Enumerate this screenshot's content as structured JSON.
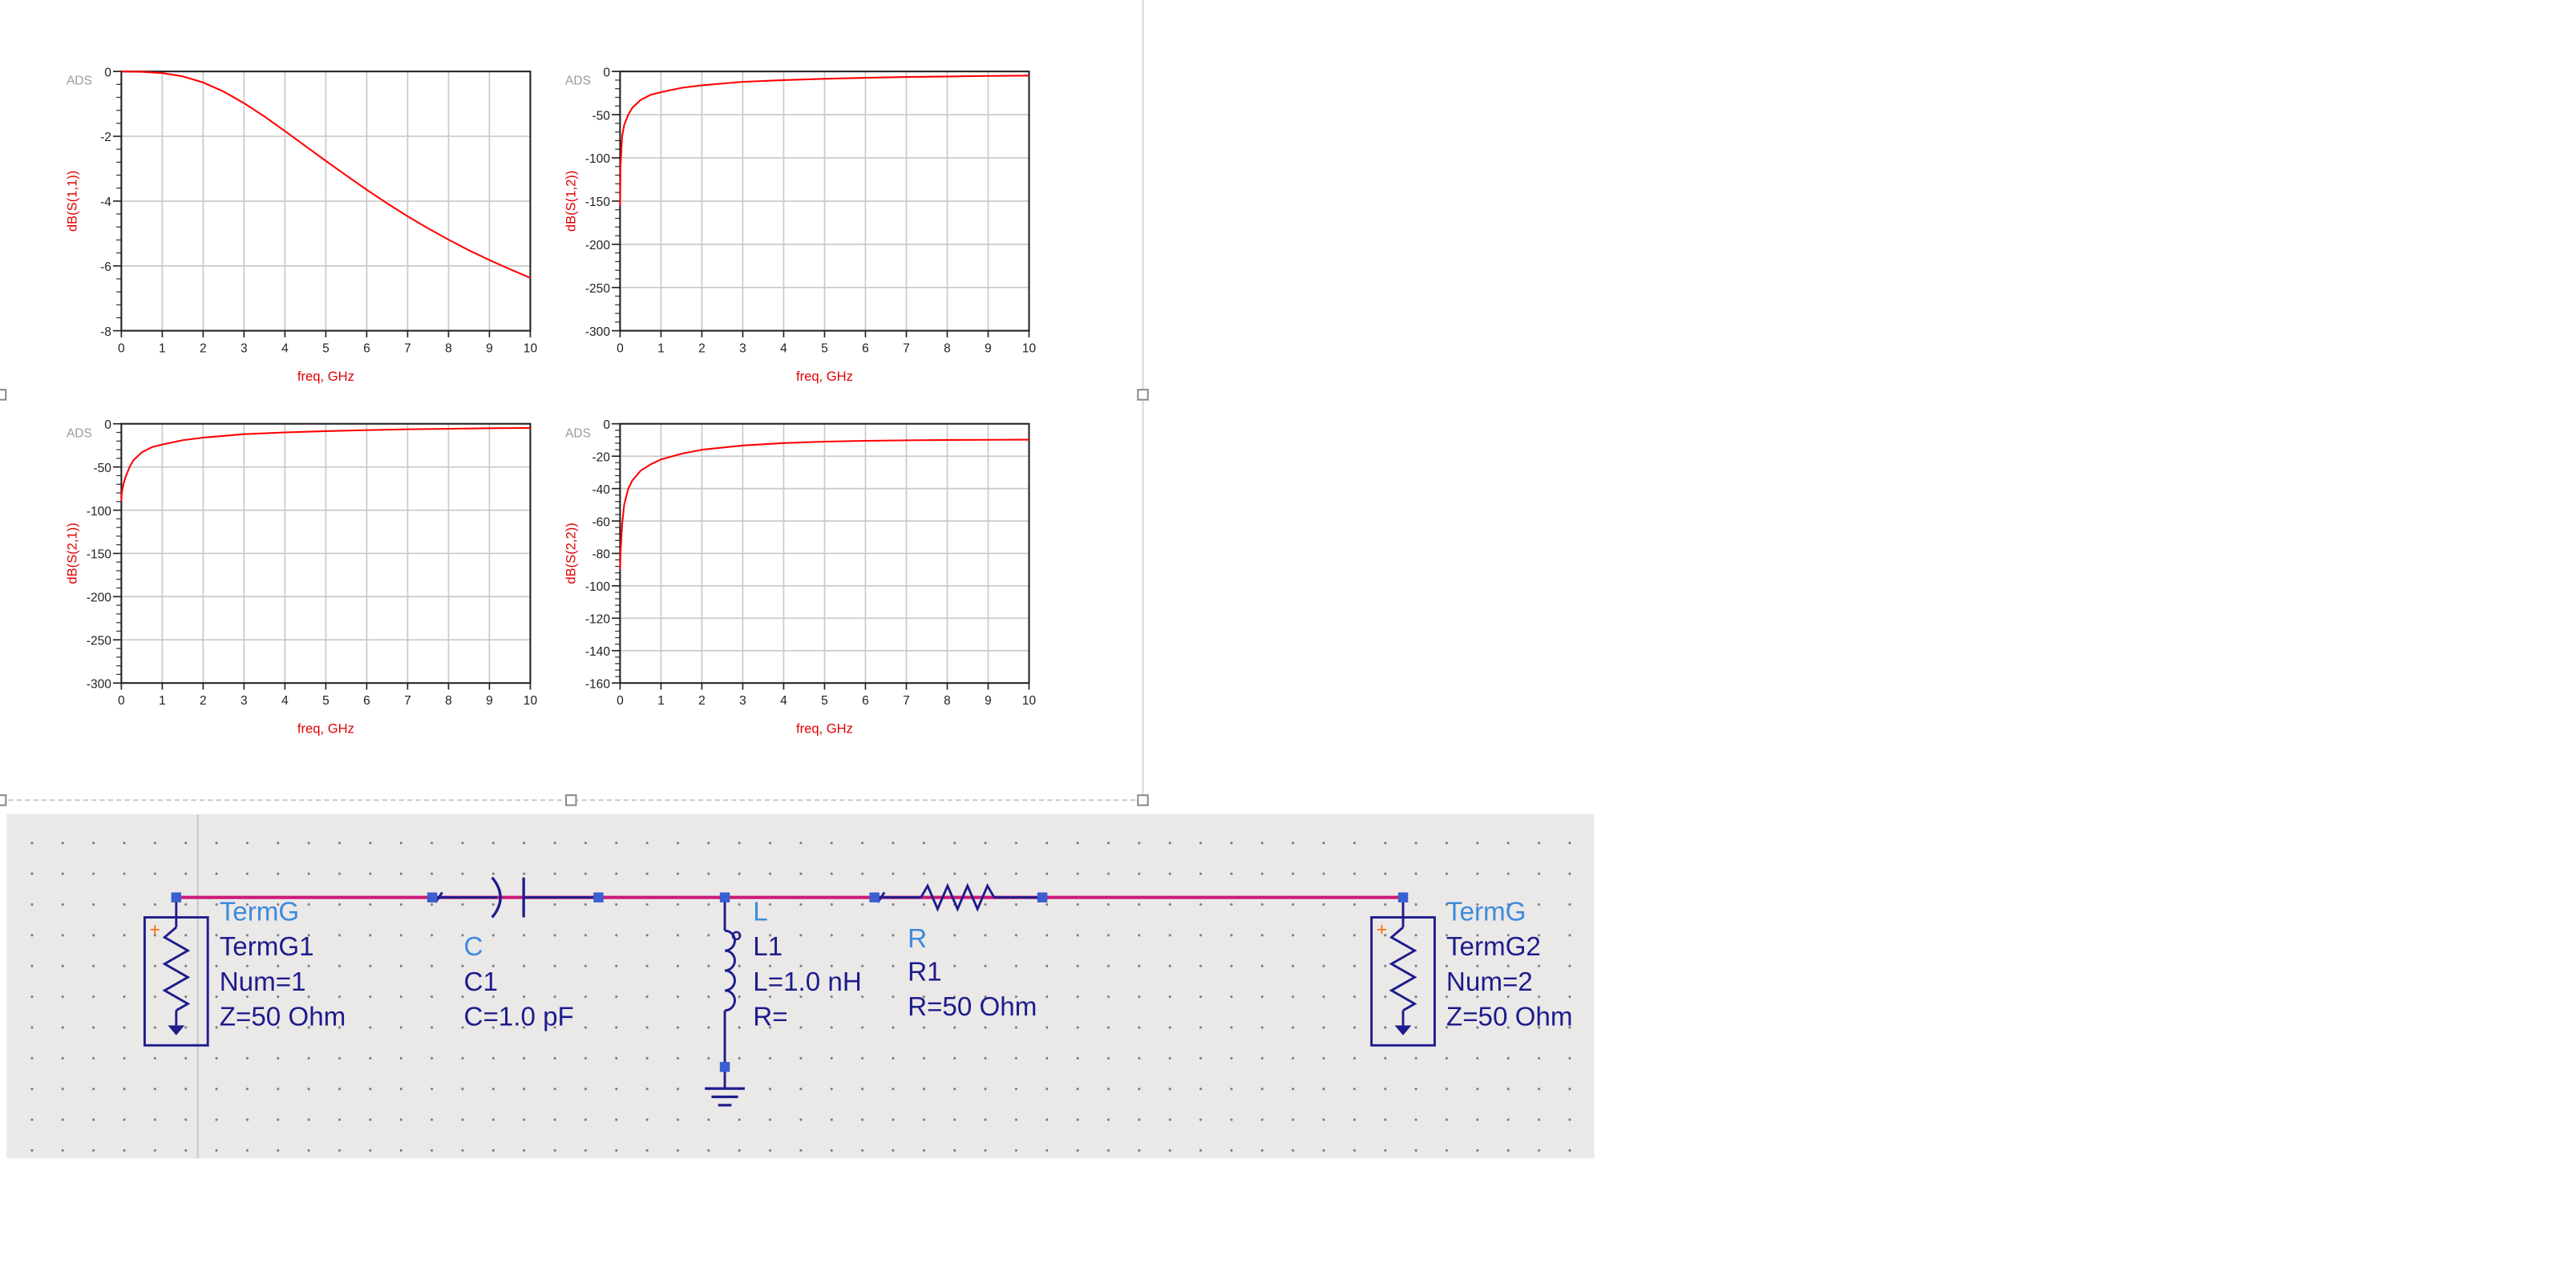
{
  "plots": [
    {
      "id": "s11",
      "tag": "ADS",
      "ylabel": "dB(S(1,1))",
      "xlabel": "freq, GHz",
      "xlim": [
        0,
        10
      ],
      "ylim": [
        -8,
        0
      ],
      "xticks": [
        0,
        1,
        2,
        3,
        4,
        5,
        6,
        7,
        8,
        9,
        10
      ],
      "yticks": [
        0,
        -2,
        -4,
        -6,
        -8
      ],
      "ytick_labels": [
        "0",
        "-2",
        "-4",
        "-6",
        "-8"
      ]
    },
    {
      "id": "s12",
      "tag": "ADS",
      "ylabel": "dB(S(1,2))",
      "xlabel": "freq, GHz",
      "xlim": [
        0,
        10
      ],
      "ylim": [
        -300,
        0
      ],
      "xticks": [
        0,
        1,
        2,
        3,
        4,
        5,
        6,
        7,
        8,
        9,
        10
      ],
      "yticks": [
        0,
        -50,
        -100,
        -150,
        -200,
        -250,
        -300
      ],
      "ytick_labels": [
        "0",
        "-50",
        "-100",
        "-150",
        "-200",
        "-250",
        "-300"
      ]
    },
    {
      "id": "s21",
      "tag": "ADS",
      "ylabel": "dB(S(2,1))",
      "xlabel": "freq, GHz",
      "xlim": [
        0,
        10
      ],
      "ylim": [
        -300,
        0
      ],
      "xticks": [
        0,
        1,
        2,
        3,
        4,
        5,
        6,
        7,
        8,
        9,
        10
      ],
      "yticks": [
        0,
        -50,
        -100,
        -150,
        -200,
        -250,
        -300
      ],
      "ytick_labels": [
        "0",
        "-50",
        "-100",
        "-150",
        "-200",
        "-250",
        "-300"
      ]
    },
    {
      "id": "s22",
      "tag": "ADS",
      "ylabel": "dB(S(2,2))",
      "xlabel": "freq, GHz",
      "xlim": [
        0,
        10
      ],
      "ylim": [
        -160,
        0
      ],
      "xticks": [
        0,
        1,
        2,
        3,
        4,
        5,
        6,
        7,
        8,
        9,
        10
      ],
      "yticks": [
        0,
        -20,
        -40,
        -60,
        -80,
        -100,
        -120,
        -140,
        -160
      ],
      "ytick_labels": [
        "0",
        "-20",
        "-40",
        "-60",
        "-80",
        "-100",
        "-120",
        "-140",
        "-160"
      ]
    }
  ],
  "chart_data": [
    {
      "type": "line",
      "ylabel": "dB(S(1,1))",
      "xlabel": "freq, GHz",
      "xlim": [
        0,
        10
      ],
      "ylim": [
        -8,
        0
      ],
      "grid": true,
      "series": [
        {
          "color": "#ff0000",
          "x": [
            0,
            0.5,
            1,
            1.5,
            2,
            2.5,
            3,
            3.5,
            4,
            4.5,
            5,
            5.5,
            6,
            6.5,
            7,
            7.5,
            8,
            8.5,
            9,
            9.5,
            10
          ],
          "y": [
            0,
            -0.01,
            -0.05,
            -0.15,
            -0.34,
            -0.62,
            -0.98,
            -1.39,
            -1.84,
            -2.3,
            -2.76,
            -3.21,
            -3.65,
            -4.07,
            -4.47,
            -4.84,
            -5.19,
            -5.52,
            -5.82,
            -6.1,
            -6.37
          ]
        }
      ]
    },
    {
      "type": "line",
      "ylabel": "dB(S(1,2))",
      "xlabel": "freq, GHz",
      "xlim": [
        0,
        10
      ],
      "ylim": [
        -300,
        0
      ],
      "grid": true,
      "series": [
        {
          "color": "#ff0000",
          "x": [
            0.001,
            0.01,
            0.05,
            0.1,
            0.2,
            0.3,
            0.5,
            0.75,
            1,
            1.5,
            2,
            3,
            4,
            5,
            6,
            7,
            8,
            9,
            10
          ],
          "y": [
            -155,
            -110,
            -75,
            -62,
            -50,
            -42,
            -33,
            -27,
            -24,
            -19,
            -16,
            -12,
            -10,
            -8.5,
            -7.3,
            -6.4,
            -5.8,
            -5.2,
            -4.8
          ]
        }
      ]
    },
    {
      "type": "line",
      "ylabel": "dB(S(2,1))",
      "xlabel": "freq, GHz",
      "xlim": [
        0,
        10
      ],
      "ylim": [
        -300,
        0
      ],
      "grid": true,
      "series": [
        {
          "color": "#ff0000",
          "x": [
            0.001,
            0.01,
            0.05,
            0.1,
            0.2,
            0.3,
            0.5,
            0.75,
            1,
            1.5,
            2,
            3,
            4,
            5,
            6,
            7,
            8,
            9,
            10
          ],
          "y": [
            -90,
            -80,
            -70,
            -62,
            -50,
            -42,
            -33,
            -27,
            -24,
            -19,
            -16,
            -12,
            -10,
            -8.5,
            -7.3,
            -6.4,
            -5.8,
            -5.2,
            -4.8
          ]
        }
      ]
    },
    {
      "type": "line",
      "ylabel": "dB(S(2,2))",
      "xlabel": "freq, GHz",
      "xlim": [
        0,
        10
      ],
      "ylim": [
        -160,
        0
      ],
      "grid": true,
      "series": [
        {
          "color": "#ff0000",
          "x": [
            0.001,
            0.01,
            0.05,
            0.1,
            0.2,
            0.3,
            0.5,
            0.75,
            1,
            1.5,
            2,
            3,
            4,
            5,
            6,
            7,
            8,
            9,
            10
          ],
          "y": [
            -90,
            -80,
            -62,
            -50,
            -40,
            -35,
            -29,
            -25,
            -22,
            -18.5,
            -16,
            -13.4,
            -11.9,
            -11,
            -10.5,
            -10.2,
            -10,
            -9.9,
            -9.8
          ]
        }
      ]
    }
  ],
  "schematic": {
    "termg1": {
      "type": "TermG",
      "name": "TermG1",
      "num": "Num=1",
      "z": "Z=50 Ohm"
    },
    "cap": {
      "type": "C",
      "name": "C1",
      "value": "C=1.0 pF"
    },
    "ind": {
      "type": "L",
      "name": "L1",
      "value": "L=1.0 nH",
      "r": "R="
    },
    "res": {
      "type": "R",
      "name": "R1",
      "value": "R=50 Ohm"
    },
    "termg2": {
      "type": "TermG",
      "name": "TermG2",
      "num": "Num=2",
      "z": "Z=50 Ohm"
    },
    "colors": {
      "wire": "#cc1a7a",
      "component": "#1c1c8c",
      "type_label": "#3d8bdc",
      "pin": "#3a5fd0",
      "polarity": "#ff6a00"
    }
  }
}
